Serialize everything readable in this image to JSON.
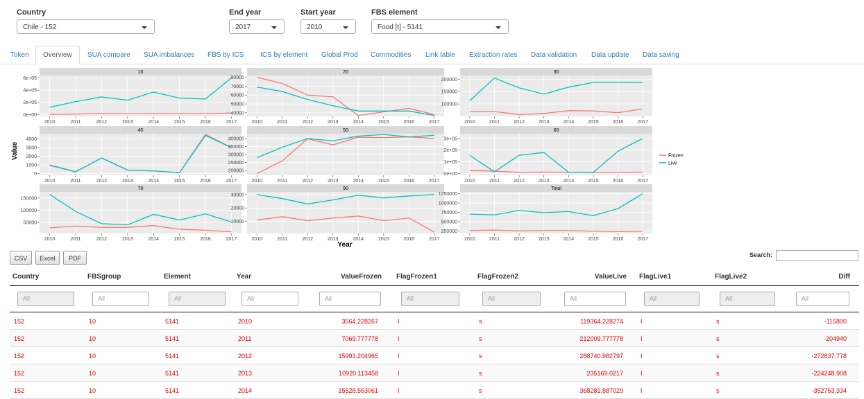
{
  "controls": [
    {
      "label": "Country",
      "value": "Chile - 152"
    },
    {
      "label": "End year",
      "value": "2017"
    },
    {
      "label": "Start year",
      "value": "2010"
    },
    {
      "label": "FBS element",
      "value": "Food [t] - 5141"
    }
  ],
  "tabs": [
    "Token",
    "Overview",
    "SUA compare",
    "SUA imbalances",
    "FBS by ICS",
    "ICS by element",
    "Global Prod",
    "Commodities",
    "Link table",
    "Extraction rates",
    "Data validation",
    "Data update",
    "Data saving"
  ],
  "active_tab": "Overview",
  "chart_data": {
    "type": "line",
    "x_label": "Year",
    "y_label": "Value",
    "x": [
      2010,
      2011,
      2012,
      2013,
      2014,
      2015,
      2016,
      2017
    ],
    "series": [
      {
        "name": "Frozen",
        "color": "#f8766d"
      },
      {
        "name": "Live",
        "color": "#00bfc4"
      }
    ],
    "panels": [
      {
        "title": "10",
        "ylim": [
          -30000,
          640000
        ],
        "yticks": [
          {
            "value": 0,
            "label": "0e+00"
          },
          {
            "value": 200000,
            "label": "2e+05"
          },
          {
            "value": 400000,
            "label": "4e+05"
          },
          {
            "value": 600000,
            "label": "6e+05"
          }
        ],
        "series": [
          {
            "values": [
              3564,
              7070,
              15903,
              10920,
              15529,
              12000,
              13000,
              25000
            ]
          },
          {
            "values": [
              119364,
              212010,
              288741,
              235169,
              368282,
              270000,
              255000,
              600000
            ]
          }
        ]
      },
      {
        "title": "20",
        "ylim": [
          36000,
          82000
        ],
        "yticks": [
          40000,
          50000,
          60000,
          70000,
          80000
        ],
        "series": [
          {
            "values": [
              80000,
              73000,
              60000,
              58000,
              37000,
              41000,
              45000,
              38000
            ]
          },
          {
            "values": [
              69000,
              64000,
              55000,
              48000,
              42000,
              42000,
              42000,
              37000
            ]
          }
        ]
      },
      {
        "title": "30",
        "ylim": [
          50000,
          215000
        ],
        "yticks": [
          100000,
          150000,
          200000
        ],
        "series": [
          {
            "values": [
              70000,
              70000,
              57000,
              62000,
              73000,
              72000,
              65000,
              80000
            ]
          },
          {
            "values": [
              113000,
              205000,
              165000,
              140000,
              168000,
              187000,
              187000,
              186000
            ]
          }
        ]
      },
      {
        "title": "40",
        "ylim": [
          -200,
          4600
        ],
        "yticks": [
          0,
          1000,
          2000,
          3000,
          4000
        ],
        "series": [
          {
            "values": [
              1000,
              200,
              1800,
              400,
              300,
              100,
              4500,
              3000
            ]
          },
          {
            "values": [
              950,
              200,
              1800,
              400,
              300,
              100,
              4400,
              3000
            ]
          }
        ]
      },
      {
        "title": "50",
        "ylim": [
          170000,
          430000
        ],
        "yticks": [
          200000,
          250000,
          300000,
          350000,
          400000
        ],
        "series": [
          {
            "values": [
              180000,
              260000,
              398000,
              360000,
              408000,
              405000,
              410000,
              400000
            ]
          },
          {
            "values": [
              280000,
              345000,
              400000,
              385000,
              415000,
              425000,
              410000,
              420000
            ]
          }
        ]
      },
      {
        "title": "60",
        "ylim": [
          -15000,
          340000
        ],
        "yticks": [
          {
            "value": 0,
            "label": "0e+00"
          },
          {
            "value": 100000,
            "label": "1e+05"
          },
          {
            "value": 200000,
            "label": "2e+05"
          },
          {
            "value": 300000,
            "label": "3e+05"
          }
        ],
        "series": [
          {
            "values": [
              25000,
              20000,
              10000,
              12000,
              10000,
              8000,
              10000,
              12000
            ]
          },
          {
            "values": [
              155000,
              15000,
              155000,
              180000,
              10000,
              10000,
              190000,
              300000
            ]
          }
        ]
      },
      {
        "title": "70",
        "ylim": [
          5000,
          175000
        ],
        "yticks": [
          50000,
          100000,
          150000
        ],
        "series": [
          {
            "values": [
              28000,
              35000,
              30000,
              30000,
              37000,
              22000,
              18000,
              12000
            ]
          },
          {
            "values": [
              165000,
              95000,
              45000,
              40000,
              83000,
              60000,
              85000,
              52000
            ]
          }
        ]
      },
      {
        "title": "90",
        "ylim": [
          1000,
          32000
        ],
        "yticks": [
          10000,
          20000,
          30000
        ],
        "series": [
          {
            "values": [
              11000,
              13500,
              10500,
              12500,
              14000,
              10500,
              12500,
              2000
            ]
          },
          {
            "values": [
              30000,
              27000,
              23000,
              26000,
              29500,
              27500,
              29000,
              30000
            ]
          }
        ]
      },
      {
        "title": "Total",
        "ylim": [
          180000,
          1300000
        ],
        "yticks": [
          250000,
          500000,
          750000,
          1000000,
          1250000
        ],
        "series": [
          {
            "values": [
              260000,
              270000,
              250000,
              260000,
              260000,
              240000,
              230000,
              240000
            ]
          },
          {
            "values": [
              700000,
              680000,
              800000,
              740000,
              770000,
              660000,
              850000,
              1250000
            ]
          }
        ]
      }
    ]
  },
  "buttons": [
    "CSV",
    "Excel",
    "PDF"
  ],
  "search_label": "Search:",
  "table": {
    "columns": [
      "Country",
      "FBSgroup",
      "Element",
      "Year",
      "ValueFrozen",
      "FlagFrozen1",
      "FlagFrozen2",
      "ValueLive",
      "FlagLive1",
      "FlagLive2",
      "Diff"
    ],
    "filters": [
      "All",
      "All",
      "All",
      "All",
      "All",
      "All",
      "All",
      "All",
      "All",
      "All",
      "All"
    ],
    "rows": [
      [
        "152",
        "10",
        "5141",
        "2010",
        "3564.228267",
        "I",
        "s",
        "119364.228274",
        "I",
        "s",
        "-115800"
      ],
      [
        "152",
        "10",
        "5141",
        "2011",
        "7069.777778",
        "I",
        "s",
        "212009.777778",
        "I",
        "s",
        "-204940"
      ],
      [
        "152",
        "10",
        "5141",
        "2012",
        "15903.204965",
        "I",
        "s",
        "288740.982797",
        "I",
        "s",
        "-272837.778"
      ],
      [
        "152",
        "10",
        "5141",
        "2013",
        "10920.113458",
        "I",
        "s",
        "235169.0217",
        "I",
        "s",
        "-224248.908"
      ],
      [
        "152",
        "10",
        "5141",
        "2014",
        "15528.553061",
        "I",
        "s",
        "368281.887029",
        "I",
        "s",
        "-352753.334"
      ]
    ]
  }
}
